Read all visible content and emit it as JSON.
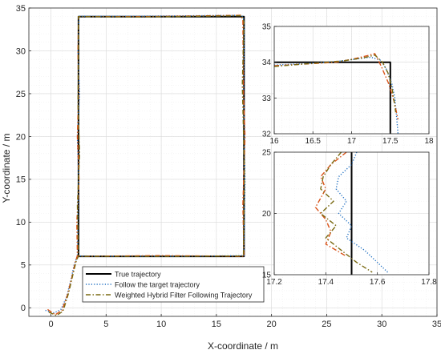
{
  "chart_data": [
    {
      "type": "line",
      "panel": "main",
      "title": "",
      "xlabel": "X-coordinate / m",
      "ylabel": "Y-coordinate / m",
      "xlim": [
        -2,
        35
      ],
      "ylim": [
        -1,
        35
      ],
      "xticks": [
        0,
        5,
        10,
        15,
        20,
        25,
        30,
        35
      ],
      "yticks": [
        0,
        5,
        10,
        15,
        20,
        25,
        30,
        35
      ],
      "grid": true,
      "legend_position": "bottom-left-center",
      "series": [
        {
          "name": "True trajectory",
          "color": "#000000",
          "style": "solid",
          "x": [
            2.5,
            2.5,
            17.5,
            17.5,
            2.5
          ],
          "y": [
            6,
            34,
            34,
            6,
            6
          ]
        },
        {
          "name": "Follow the target trajectory",
          "color": "#1f6fc2",
          "style": "dotted",
          "x": [
            -0.5,
            0.3,
            0.9,
            1.4,
            1.8,
            2.1,
            2.4,
            2.45,
            2.5,
            2.4,
            2.6,
            2.45,
            2.55,
            2.5,
            8,
            17.3,
            17.55,
            17.45,
            17.6,
            17.5,
            12,
            2.6
          ],
          "y": [
            -0.3,
            -0.6,
            -0.2,
            1.2,
            3.2,
            5.0,
            6.0,
            10,
            15,
            20,
            25,
            30,
            33.8,
            34.05,
            34.05,
            34.15,
            33.5,
            25,
            15,
            6.1,
            6.0,
            6.05
          ]
        },
        {
          "name": "",
          "color": "#d95319",
          "style": "dashdot",
          "x": [
            -0.3,
            0.4,
            1.0,
            1.5,
            1.9,
            2.2,
            2.4,
            2.35,
            2.55,
            2.4,
            2.5,
            2.45,
            2.5,
            9,
            17.2,
            17.4,
            17.45,
            17.6,
            17.4,
            17.5,
            10,
            2.5
          ],
          "y": [
            -0.2,
            -0.8,
            -0.3,
            1.5,
            3.6,
            5.3,
            6.1,
            10,
            15,
            20,
            25,
            30,
            34.0,
            34.0,
            34.15,
            33.6,
            25,
            20,
            12,
            6.0,
            6.1,
            6.0
          ]
        },
        {
          "name": "Weighted Hybrid Filter Following Trajectory",
          "color": "#7a6a12",
          "style": "dashdot",
          "x": [
            -0.2,
            0.5,
            1.1,
            1.6,
            2.0,
            2.3,
            2.5,
            2.4,
            2.6,
            2.45,
            2.5,
            2.5,
            8,
            17.3,
            17.5,
            17.35,
            17.55,
            17.45,
            11,
            2.5
          ],
          "y": [
            -0.5,
            -0.9,
            -0.4,
            1.7,
            3.9,
            5.5,
            6.05,
            12,
            18,
            24,
            30,
            34.0,
            33.95,
            34.1,
            33.4,
            26,
            16,
            6.05,
            6.0,
            6.0
          ]
        }
      ]
    },
    {
      "type": "line",
      "panel": "inset-top",
      "title": "",
      "xlim": [
        16,
        18
      ],
      "ylim": [
        32,
        35
      ],
      "xticks": [
        16,
        16.5,
        17,
        17.5,
        18
      ],
      "yticks": [
        32,
        33,
        34,
        35
      ],
      "grid": true,
      "series": [
        {
          "name": "True trajectory",
          "color": "#000000",
          "style": "solid",
          "x": [
            16.0,
            17.5,
            17.5
          ],
          "y": [
            34.0,
            34.0,
            32.0
          ]
        },
        {
          "name": "Follow the target trajectory",
          "color": "#1f6fc2",
          "style": "dotted",
          "x": [
            16.0,
            16.4,
            16.8,
            17.1,
            17.25,
            17.38,
            17.45,
            17.52,
            17.56,
            17.58,
            17.6
          ],
          "y": [
            33.92,
            33.96,
            34.02,
            34.1,
            34.14,
            34.05,
            33.8,
            33.4,
            33.0,
            32.5,
            32.0
          ]
        },
        {
          "name": "",
          "color": "#d95319",
          "style": "dashdot",
          "x": [
            16.0,
            16.4,
            16.8,
            17.0,
            17.2,
            17.3,
            17.38,
            17.48,
            17.55,
            17.6
          ],
          "y": [
            33.9,
            33.95,
            34.0,
            34.08,
            34.18,
            34.24,
            33.9,
            33.4,
            32.9,
            32.4
          ]
        },
        {
          "name": "Weighted Hybrid Filter Following Trajectory",
          "color": "#7a6a12",
          "style": "dashdot",
          "x": [
            16.0,
            16.5,
            16.9,
            17.15,
            17.3,
            17.4,
            17.47,
            17.52,
            17.55,
            17.57
          ],
          "y": [
            33.88,
            33.97,
            34.04,
            34.12,
            34.2,
            34.0,
            33.7,
            33.3,
            32.9,
            32.6
          ]
        }
      ]
    },
    {
      "type": "line",
      "panel": "inset-bottom",
      "title": "",
      "xlim": [
        17.2,
        17.8
      ],
      "ylim": [
        15,
        25
      ],
      "xticks": [
        17.2,
        17.4,
        17.6,
        17.8
      ],
      "yticks": [
        15,
        20,
        25
      ],
      "grid": true,
      "series": [
        {
          "name": "True trajectory",
          "color": "#000000",
          "style": "solid",
          "x": [
            17.5,
            17.5
          ],
          "y": [
            15,
            25
          ]
        },
        {
          "name": "Follow the target trajectory",
          "color": "#1f6fc2",
          "style": "dotted",
          "x": [
            17.52,
            17.5,
            17.45,
            17.44,
            17.48,
            17.45,
            17.5,
            17.48,
            17.55,
            17.6,
            17.64
          ],
          "y": [
            25,
            24,
            23,
            22,
            21,
            20,
            19,
            18,
            17,
            16,
            15.2
          ]
        },
        {
          "name": "",
          "color": "#d95319",
          "style": "dashdot",
          "x": [
            17.48,
            17.42,
            17.38,
            17.4,
            17.36,
            17.4,
            17.42,
            17.4,
            17.44,
            17.48
          ],
          "y": [
            25,
            24,
            23,
            22,
            20.5,
            19.5,
            18.5,
            17.5,
            17,
            16.5
          ]
        },
        {
          "name": "Weighted Hybrid Filter Following Trajectory",
          "color": "#7a6a12",
          "style": "dashdot",
          "x": [
            17.46,
            17.42,
            17.39,
            17.38,
            17.43,
            17.38,
            17.44,
            17.4,
            17.46,
            17.52,
            17.58
          ],
          "y": [
            25,
            24,
            23,
            22,
            21,
            20,
            19,
            18,
            17,
            16,
            15.2
          ]
        }
      ]
    }
  ]
}
